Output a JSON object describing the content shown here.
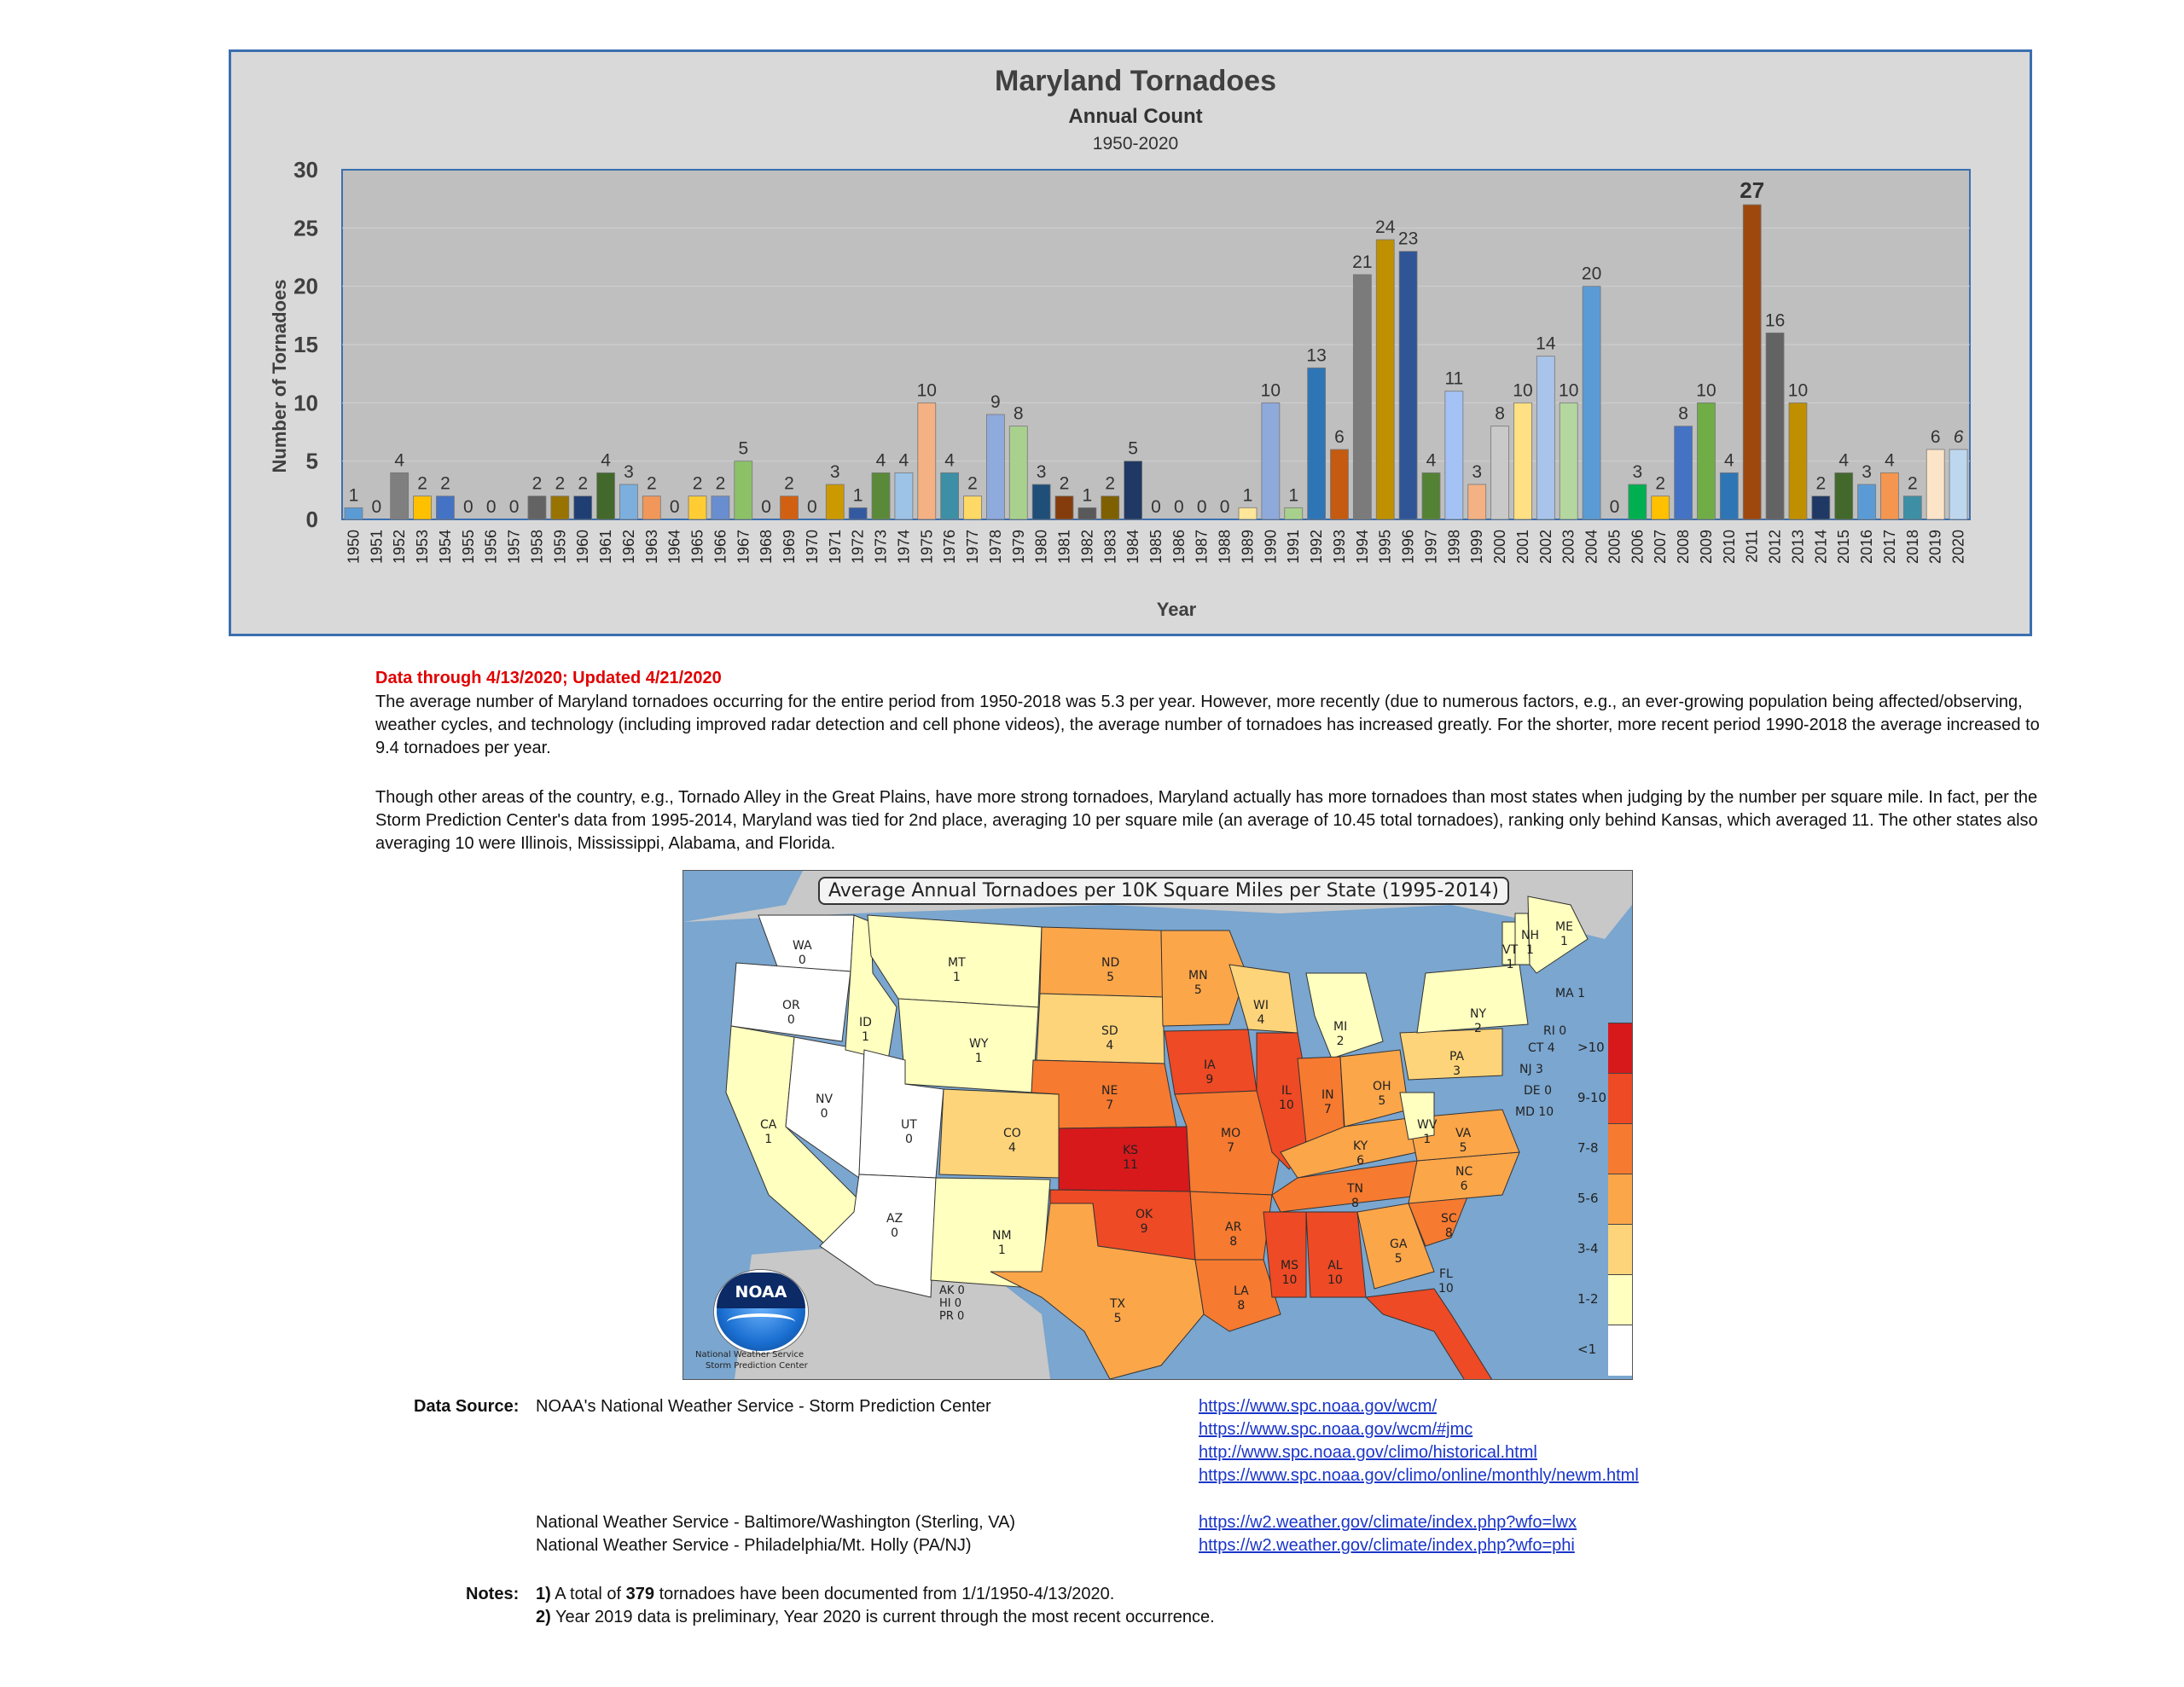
{
  "chart_data": {
    "type": "bar",
    "title": "Maryland Tornadoes",
    "subtitle": "Annual Count",
    "period": "1950-2020",
    "xlabel": "Year",
    "ylabel": "Number of Tornadoes",
    "ylim": [
      0,
      30
    ],
    "yticks": [
      "0",
      "5",
      "10",
      "15",
      "20",
      "25",
      "30"
    ],
    "grid": true,
    "categories": [
      "1950",
      "1951",
      "1952",
      "1953",
      "1954",
      "1955",
      "1956",
      "1957",
      "1958",
      "1959",
      "1960",
      "1961",
      "1962",
      "1963",
      "1964",
      "1965",
      "1966",
      "1967",
      "1968",
      "1969",
      "1970",
      "1971",
      "1972",
      "1973",
      "1974",
      "1975",
      "1976",
      "1977",
      "1978",
      "1979",
      "1980",
      "1981",
      "1982",
      "1983",
      "1984",
      "1985",
      "1986",
      "1987",
      "1988",
      "1989",
      "1990",
      "1991",
      "1992",
      "1993",
      "1994",
      "1995",
      "1996",
      "1997",
      "1998",
      "1999",
      "2000",
      "2001",
      "2002",
      "2003",
      "2004",
      "2005",
      "2006",
      "2007",
      "2008",
      "2009",
      "2010",
      "2011",
      "2012",
      "2013",
      "2014",
      "2015",
      "2016",
      "2017",
      "2018",
      "2019",
      "2020"
    ],
    "values": [
      1,
      0,
      4,
      2,
      2,
      0,
      0,
      0,
      2,
      2,
      2,
      4,
      3,
      2,
      0,
      2,
      2,
      5,
      0,
      2,
      0,
      3,
      1,
      4,
      4,
      10,
      4,
      2,
      9,
      8,
      3,
      2,
      1,
      2,
      5,
      0,
      0,
      0,
      0,
      1,
      10,
      1,
      13,
      6,
      21,
      24,
      23,
      4,
      11,
      3,
      8,
      10,
      14,
      10,
      20,
      0,
      3,
      2,
      8,
      10,
      4,
      27,
      16,
      10,
      2,
      4,
      3,
      4,
      2,
      6,
      6
    ],
    "bar_colors": [
      "#5b9bd5",
      "#ed7d31",
      "#7f7f7f",
      "#ffc000",
      "#4472c4",
      "#70ad47",
      "#264478",
      "#9e480e",
      "#636363",
      "#997300",
      "#1f3f74",
      "#43682b",
      "#7cafdd",
      "#f1975a",
      "#a5a5a5",
      "#ffcd33",
      "#698ed0",
      "#8cc168",
      "#327dc2",
      "#d26012",
      "#848484",
      "#cc9a00",
      "#335aa1",
      "#5a8a39",
      "#9dc3e6",
      "#f4b183",
      "#3d8fa6",
      "#ffd966",
      "#8faadc",
      "#a9d18e",
      "#1f4e79",
      "#843c0c",
      "#595959",
      "#7f6000",
      "#203864",
      "#385723",
      "#bdd7ee",
      "#f8cbad",
      "#dbdbdb",
      "#ffe699",
      "#8eaadb",
      "#a8d08d",
      "#2e75b6",
      "#c55a11",
      "#7b7b7b",
      "#bf9000",
      "#2f5597",
      "#548235",
      "#a4c2f4",
      "#f4b183",
      "#c9c9c9",
      "#ffe082",
      "#a9c4eb",
      "#b4d7a0",
      "#5b9bd5",
      "#ed7d31",
      "#00b050",
      "#ffc000",
      "#4472c4",
      "#70ad47",
      "#2e75b6",
      "#9e480e",
      "#636363",
      "#bf8f00",
      "#203864",
      "#43682b",
      "#5b9bd5",
      "#f4964f",
      "#3d8fa6",
      "#fce4c8",
      "#bdd7ee"
    ],
    "bold_labels": [
      "2011"
    ],
    "italic_labels": [
      "2020"
    ]
  },
  "text": {
    "updated": "Data through 4/13/2020; Updated 4/21/2020",
    "para1": "The average number of Maryland tornadoes occurring for the entire period from 1950-2018 was 5.3 per year. However, more recently (due to numerous factors, e.g., an ever-growing population being affected/observing, weather cycles, and technology (including improved radar detection and cell phone videos), the average number of tornadoes has increased greatly. For the shorter, more recent period 1990-2018 the average increased to 9.4 tornadoes per year.",
    "para2": "Though other areas of the country, e.g., Tornado Alley in the Great Plains, have more strong tornadoes, Maryland actually has more tornadoes than most states when judging by the number per square mile. In fact, per the Storm Prediction Center's data from 1995-2014, Maryland was tied for 2nd place, averaging 10 per square mile (an average of 10.45 total tornadoes), ranking only behind Kansas, which averaged 11.  The other states also averaging 10 were Illinois, Mississippi, Alabama, and Florida."
  },
  "map": {
    "title": "Average Annual Tornadoes per 10K Square Miles per State (1995-2014)",
    "noaa_logo": "NOAA",
    "noaa_caption_1": "National Weather Service",
    "noaa_caption_2": "Storm Prediction Center",
    "territories": "AK 0\nHI 0\nPR 0",
    "legend": [
      {
        "label": ">10",
        "color": "#d7191c"
      },
      {
        "label": "9-10",
        "color": "#ee4a25"
      },
      {
        "label": "7-8",
        "color": "#f67a30"
      },
      {
        "label": "5-6",
        "color": "#fca64a"
      },
      {
        "label": "3-4",
        "color": "#fed47a"
      },
      {
        "label": "1-2",
        "color": "#ffffbf"
      },
      {
        "label": "<1",
        "color": "#ffffff"
      }
    ],
    "states": [
      {
        "abbr": "WA",
        "value": "0",
        "color": "#ffffff"
      },
      {
        "abbr": "OR",
        "value": "0",
        "color": "#ffffff"
      },
      {
        "abbr": "CA",
        "value": "1",
        "color": "#ffffbf"
      },
      {
        "abbr": "NV",
        "value": "0",
        "color": "#ffffff"
      },
      {
        "abbr": "ID",
        "value": "1",
        "color": "#ffffbf"
      },
      {
        "abbr": "MT",
        "value": "1",
        "color": "#ffffbf"
      },
      {
        "abbr": "WY",
        "value": "1",
        "color": "#ffffbf"
      },
      {
        "abbr": "UT",
        "value": "0",
        "color": "#ffffff"
      },
      {
        "abbr": "AZ",
        "value": "0",
        "color": "#ffffff"
      },
      {
        "abbr": "CO",
        "value": "4",
        "color": "#fed47a"
      },
      {
        "abbr": "NM",
        "value": "1",
        "color": "#ffffbf"
      },
      {
        "abbr": "ND",
        "value": "5",
        "color": "#fca64a"
      },
      {
        "abbr": "SD",
        "value": "4",
        "color": "#fed47a"
      },
      {
        "abbr": "NE",
        "value": "7",
        "color": "#f67a30"
      },
      {
        "abbr": "KS",
        "value": "11",
        "color": "#d7191c"
      },
      {
        "abbr": "OK",
        "value": "9",
        "color": "#ee4a25"
      },
      {
        "abbr": "TX",
        "value": "5",
        "color": "#fca64a"
      },
      {
        "abbr": "MN",
        "value": "5",
        "color": "#fca64a"
      },
      {
        "abbr": "IA",
        "value": "9",
        "color": "#ee4a25"
      },
      {
        "abbr": "MO",
        "value": "7",
        "color": "#f67a30"
      },
      {
        "abbr": "AR",
        "value": "8",
        "color": "#f67a30"
      },
      {
        "abbr": "LA",
        "value": "8",
        "color": "#f67a30"
      },
      {
        "abbr": "WI",
        "value": "4",
        "color": "#fed47a"
      },
      {
        "abbr": "IL",
        "value": "10",
        "color": "#ee4a25"
      },
      {
        "abbr": "MI",
        "value": "2",
        "color": "#ffffbf"
      },
      {
        "abbr": "IN",
        "value": "7",
        "color": "#f67a30"
      },
      {
        "abbr": "OH",
        "value": "5",
        "color": "#fca64a"
      },
      {
        "abbr": "KY",
        "value": "6",
        "color": "#fca64a"
      },
      {
        "abbr": "TN",
        "value": "8",
        "color": "#f67a30"
      },
      {
        "abbr": "MS",
        "value": "10",
        "color": "#ee4a25"
      },
      {
        "abbr": "AL",
        "value": "10",
        "color": "#ee4a25"
      },
      {
        "abbr": "GA",
        "value": "5",
        "color": "#fca64a"
      },
      {
        "abbr": "FL",
        "value": "10",
        "color": "#ee4a25"
      },
      {
        "abbr": "SC",
        "value": "8",
        "color": "#f67a30"
      },
      {
        "abbr": "NC",
        "value": "6",
        "color": "#fca64a"
      },
      {
        "abbr": "VA",
        "value": "5",
        "color": "#fca64a"
      },
      {
        "abbr": "WV",
        "value": "1",
        "color": "#ffffbf"
      },
      {
        "abbr": "PA",
        "value": "3",
        "color": "#fed47a"
      },
      {
        "abbr": "NY",
        "value": "2",
        "color": "#ffffbf"
      },
      {
        "abbr": "ME",
        "value": "1",
        "color": "#ffffbf"
      },
      {
        "abbr": "NH",
        "value": "1",
        "color": "#ffffbf"
      },
      {
        "abbr": "VT",
        "value": "1",
        "color": "#ffffbf"
      }
    ],
    "east_labels": [
      {
        "label": "MA 1"
      },
      {
        "label": "RI 0"
      },
      {
        "label": "CT 4"
      },
      {
        "label": "NJ 3"
      },
      {
        "label": "DE 0"
      },
      {
        "label": "MD 10"
      }
    ]
  },
  "sources": {
    "label": "Data Source:",
    "spc": "NOAA's National Weather Service - Storm Prediction Center",
    "spc_links": [
      "https://www.spc.noaa.gov/wcm/",
      "https://www.spc.noaa.gov/wcm/#jmc",
      "http://www.spc.noaa.gov/climo/historical.html",
      "https://www.spc.noaa.gov/climo/online/monthly/newm.html"
    ],
    "lwx": "National Weather Service - Baltimore/Washington (Sterling, VA)",
    "lwx_link": "https://w2.weather.gov/climate/index.php?wfo=lwx",
    "phi": "National Weather Service - Philadelphia/Mt. Holly  (PA/NJ)",
    "phi_link": "https://w2.weather.gov/climate/index.php?wfo=phi"
  },
  "notes": {
    "label": "Notes:",
    "n1_num": "1)",
    "n1_pre": " A total of ",
    "n1_bold": "379",
    "n1_post": " tornadoes have been documented from 1/1/1950-4/13/2020.",
    "n2_num": "2)",
    "n2_text": " Year 2019 data is preliminary, Year 2020 is current through the most recent occurrence."
  }
}
